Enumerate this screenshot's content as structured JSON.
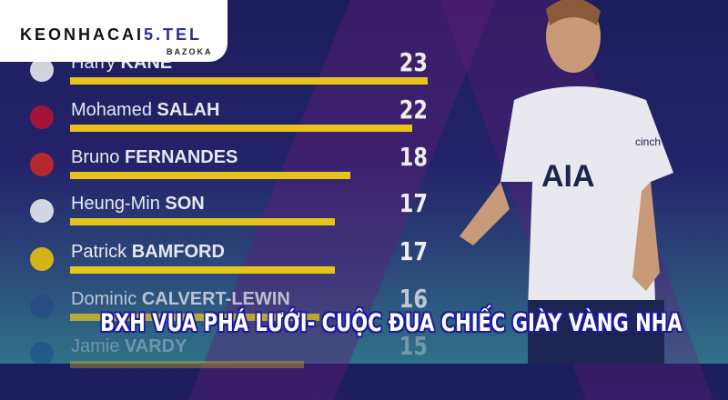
{
  "logo": {
    "brand_black": "KE",
    "brand_ball": "O",
    "brand_mid": "NHACAI",
    "brand_blue": "5.TEL",
    "sub": "BAZOKA"
  },
  "headline": "BXH VUA PHÁ LƯỚI- CUỘC ĐUA CHIẾC GIÀY VÀNG NHA",
  "bar_color": "#e8c41a",
  "players": [
    {
      "first": "Harry",
      "last": "KANE",
      "goals": "23",
      "value": 23,
      "club_color": "#ffffff"
    },
    {
      "first": "Mohamed",
      "last": "SALAH",
      "goals": "22",
      "value": 22,
      "club_color": "#c8102e"
    },
    {
      "first": "Bruno",
      "last": "FERNANDES",
      "goals": "18",
      "value": 18,
      "club_color": "#da291c"
    },
    {
      "first": "Heung-Min",
      "last": "SON",
      "goals": "17",
      "value": 17,
      "club_color": "#ffffff"
    },
    {
      "first": "Patrick",
      "last": "BAMFORD",
      "goals": "17",
      "value": 17,
      "club_color": "#ffcd00"
    },
    {
      "first": "Dominic",
      "last": "CALVERT-LEWIN",
      "goals": "16",
      "value": 16,
      "club_color": "#274488"
    },
    {
      "first": "Jamie",
      "last": "VARDY",
      "goals": "15",
      "value": 15,
      "club_color": "#003090"
    }
  ],
  "shirt": {
    "sponsor": "AIA",
    "sleeve": "cinch"
  }
}
